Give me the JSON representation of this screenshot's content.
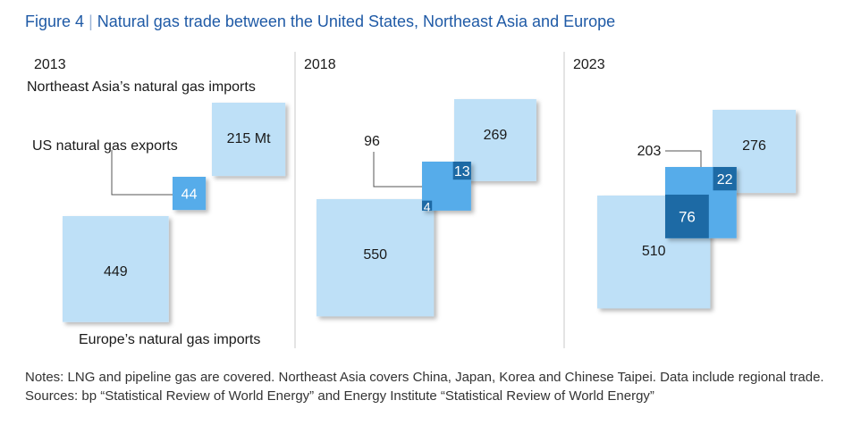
{
  "figure": {
    "label": "Figure 4",
    "separator": "|",
    "title": "Natural gas trade between the United States, Northeast Asia and Europe"
  },
  "colors": {
    "light": "#bee0f7",
    "mid": "#56acea",
    "dark": "#1d6aa5",
    "line": "#555555",
    "divider": "#c8c8c8"
  },
  "chart_data": {
    "type": "proportional-square overlap diagram",
    "unit": "Mt",
    "labels": {
      "asia": "Northeast Asia’s natural gas imports",
      "us": "US natural gas exports",
      "europe": "Europe’s natural gas imports"
    },
    "panels": [
      {
        "year": "2013",
        "asia_imports": 215,
        "asia_label": "215 Mt",
        "europe_imports": 449,
        "europe_label": "449",
        "us_exports_total": 44,
        "us_label": "44",
        "us_to_asia": 0,
        "us_to_europe": 0
      },
      {
        "year": "2018",
        "asia_imports": 269,
        "asia_label": "269",
        "europe_imports": 550,
        "europe_label": "550",
        "us_exports_total": 96,
        "us_label": "96",
        "us_to_asia": 13,
        "us_to_asia_label": "13",
        "us_to_europe": 4,
        "us_to_europe_label": "4"
      },
      {
        "year": "2023",
        "asia_imports": 276,
        "asia_label": "276",
        "europe_imports": 510,
        "europe_label": "510",
        "us_exports_total": 203,
        "us_label": "203",
        "us_to_asia": 22,
        "us_to_asia_label": "22",
        "us_to_europe": 76,
        "us_to_europe_label": "76"
      }
    ]
  },
  "notes": {
    "notes_text": "Notes: LNG and pipeline gas are covered. Northeast Asia covers China, Japan, Korea and Chinese Taipei. Data include regional trade.",
    "sources_text": "Sources: bp “Statistical Review of World Energy” and Energy Institute “Statistical Review of World Energy”"
  }
}
